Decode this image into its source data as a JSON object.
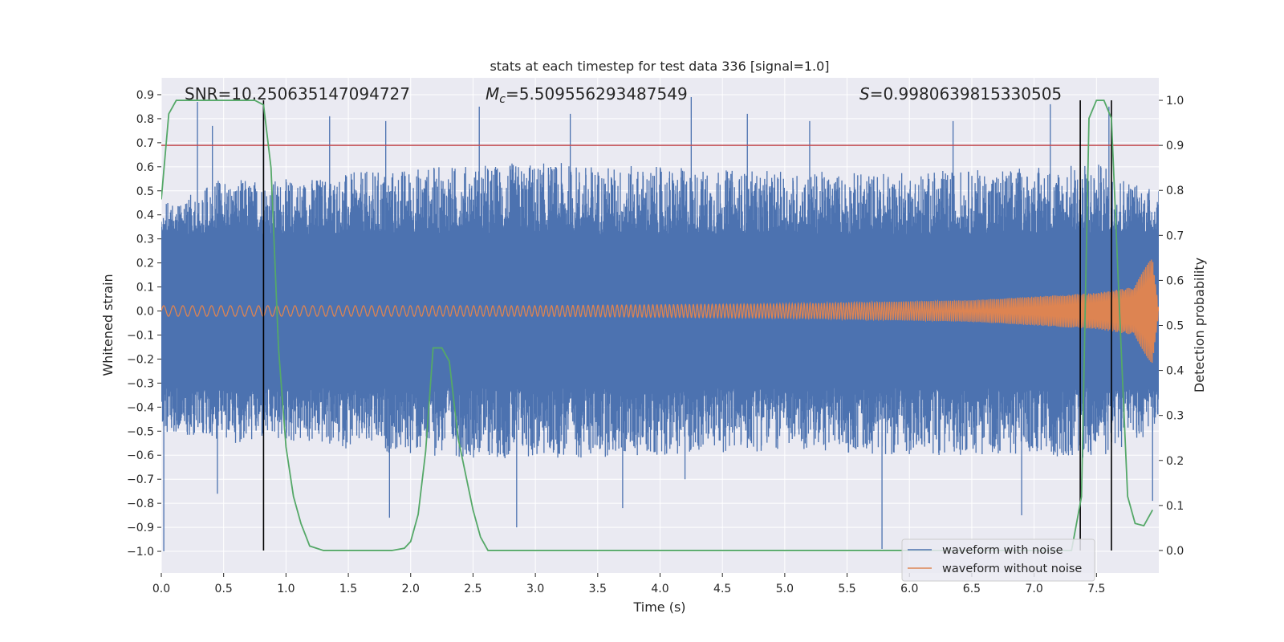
{
  "chart_data": {
    "type": "line",
    "title": "stats at each timestep for test data 336 [signal=1.0]",
    "xlabel": "Time (s)",
    "ylabel": "Whitened strain",
    "ylabel_right": "Detection probability",
    "xlim": [
      0,
      8.0
    ],
    "ylim": [
      -1.09,
      0.97
    ],
    "ylim_right": [
      -0.05,
      1.05
    ],
    "x_ticks": [
      "0.0",
      "0.5",
      "1.0",
      "1.5",
      "2.0",
      "2.5",
      "3.0",
      "3.5",
      "4.0",
      "4.5",
      "5.0",
      "5.5",
      "6.0",
      "6.5",
      "7.0",
      "7.5"
    ],
    "x_tick_values": [
      0,
      0.5,
      1,
      1.5,
      2,
      2.5,
      3,
      3.5,
      4,
      4.5,
      5,
      5.5,
      6,
      6.5,
      7,
      7.5
    ],
    "y_ticks": [
      "0.9",
      "0.8",
      "0.7",
      "0.6",
      "0.5",
      "0.4",
      "0.3",
      "0.2",
      "0.1",
      "0.0",
      "−0.1",
      "−0.2",
      "−0.3",
      "−0.4",
      "−0.5",
      "−0.6",
      "−0.7",
      "−0.8",
      "−0.9",
      "−1.0"
    ],
    "y_tick_values": [
      0.9,
      0.8,
      0.7,
      0.6,
      0.5,
      0.4,
      0.3,
      0.2,
      0.1,
      0,
      -0.1,
      -0.2,
      -0.3,
      -0.4,
      -0.5,
      -0.6,
      -0.7,
      -0.8,
      -0.9,
      -1.0
    ],
    "y_right_ticks": [
      "1.0",
      "0.9",
      "0.8",
      "0.7",
      "0.6",
      "0.5",
      "0.4",
      "0.3",
      "0.2",
      "0.1",
      "0.0"
    ],
    "y_right_tick_values": [
      1.0,
      0.9,
      0.8,
      0.7,
      0.6,
      0.5,
      0.4,
      0.3,
      0.2,
      0.1,
      0.0
    ],
    "grid": true,
    "legend_position": "lower-right",
    "annotations": {
      "snr": "SNR=10.250635147094727",
      "mc_symbol": "M",
      "mc_sub": "c",
      "mc_value": "=5.509556293487549",
      "s_symbol": "S",
      "s_value": "=0.9980639815330505"
    },
    "series": [
      {
        "name": "waveform with noise",
        "color": "#4c72b0",
        "style": "noise band (dense fill)",
        "envelope_x": [
          0.0,
          0.5,
          1.0,
          2.0,
          3.0,
          4.0,
          5.0,
          6.0,
          7.0,
          7.5,
          8.0
        ],
        "envelope_upper": [
          0.45,
          0.55,
          0.55,
          0.6,
          0.62,
          0.6,
          0.58,
          0.58,
          0.6,
          0.62,
          0.5
        ],
        "envelope_lower": [
          -0.5,
          -0.55,
          -0.55,
          -0.6,
          -0.62,
          -0.6,
          -0.58,
          -0.6,
          -0.6,
          -0.62,
          -0.5
        ],
        "core_half_width": 0.32,
        "peaks_up": [
          [
            0.29,
            0.87
          ],
          [
            0.41,
            0.77
          ],
          [
            0.82,
            0.86
          ],
          [
            1.35,
            0.81
          ],
          [
            1.8,
            0.79
          ],
          [
            2.55,
            0.85
          ],
          [
            3.28,
            0.82
          ],
          [
            4.25,
            0.89
          ],
          [
            4.7,
            0.82
          ],
          [
            5.2,
            0.79
          ],
          [
            6.35,
            0.79
          ],
          [
            7.13,
            0.86
          ],
          [
            7.6,
            0.85
          ]
        ],
        "peaks_down": [
          [
            0.02,
            -1.0
          ],
          [
            0.45,
            -0.76
          ],
          [
            1.83,
            -0.86
          ],
          [
            2.85,
            -0.9
          ],
          [
            3.7,
            -0.82
          ],
          [
            4.2,
            -0.7
          ],
          [
            5.78,
            -0.99
          ],
          [
            6.9,
            -0.85
          ],
          [
            7.95,
            -0.79
          ]
        ]
      },
      {
        "name": "waveform without noise",
        "color": "#dd8452",
        "style": "chirp",
        "amplitude_x": [
          0.0,
          3.0,
          5.0,
          6.5,
          7.5,
          7.8,
          7.95,
          8.0
        ],
        "amplitude": [
          0.022,
          0.022,
          0.03,
          0.045,
          0.075,
          0.1,
          0.23,
          0.0
        ]
      },
      {
        "name": "",
        "color": "#55a868",
        "axis": "right",
        "x": [
          0.0,
          0.06,
          0.12,
          0.25,
          0.5,
          0.75,
          0.82,
          0.88,
          0.94,
          1.0,
          1.06,
          1.12,
          1.19,
          1.3,
          1.6,
          1.85,
          1.95,
          2.0,
          2.06,
          2.12,
          2.18,
          2.25,
          2.31,
          2.38,
          2.5,
          2.56,
          2.62,
          2.69,
          2.75,
          3.0,
          4.0,
          5.0,
          6.0,
          7.0,
          7.3,
          7.38,
          7.44,
          7.5,
          7.56,
          7.62,
          7.69,
          7.75,
          7.81,
          7.88,
          7.95
        ],
        "y": [
          0.78,
          0.97,
          1.0,
          1.0,
          1.0,
          1.0,
          0.99,
          0.85,
          0.45,
          0.23,
          0.12,
          0.06,
          0.01,
          0.0,
          0.0,
          0.0,
          0.005,
          0.02,
          0.08,
          0.22,
          0.45,
          0.45,
          0.42,
          0.25,
          0.09,
          0.03,
          0.0,
          0.0,
          0.0,
          0.0,
          0.0,
          0.0,
          0.0,
          0.0,
          0.0,
          0.12,
          0.96,
          1.0,
          1.0,
          0.96,
          0.5,
          0.12,
          0.06,
          0.055,
          0.09
        ]
      },
      {
        "name": "",
        "color": "#c44e52",
        "style": "horizontal threshold line",
        "axis": "right",
        "y": 0.9
      }
    ],
    "vertical_markers": [
      {
        "x": 0.82,
        "color": "#000000"
      },
      {
        "x": 7.37,
        "color": "#000000"
      },
      {
        "x": 7.62,
        "color": "#000000"
      }
    ]
  }
}
